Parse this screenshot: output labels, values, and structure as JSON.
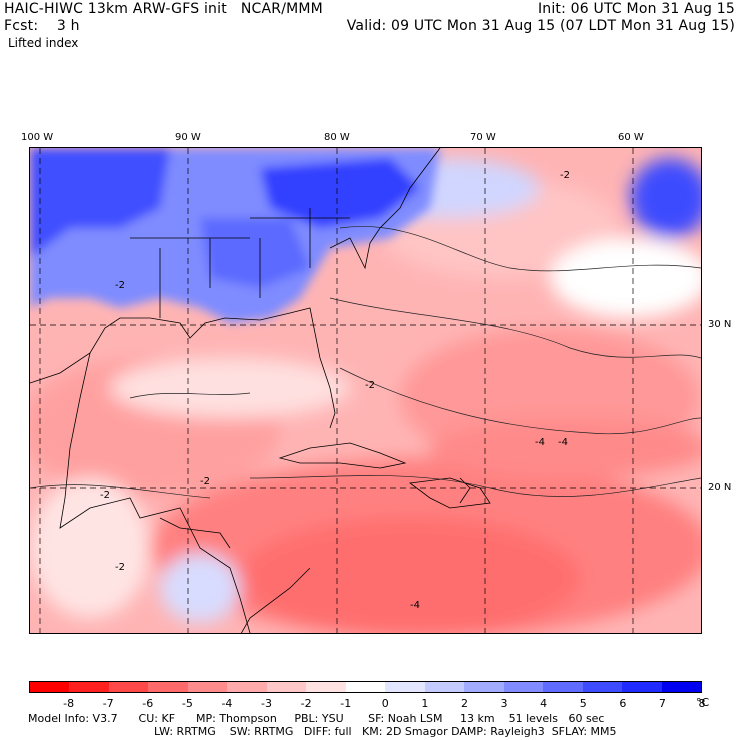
{
  "header": {
    "line1_left": "HAIC-HIWC 13km ARW-GFS init   NCAR/MMM",
    "line1_right": "Init: 06 UTC Mon 31 Aug 15",
    "line2_left": "Fcst:    3 h",
    "line2_right": "Valid: 09 UTC Mon 31 Aug 15 (07 LDT Mon 31 Aug 15)",
    "field": "Lifted index"
  },
  "map": {
    "lon_labels": [
      "100 W",
      "90 W",
      "80 W",
      "70 W",
      "60 W"
    ],
    "lat_labels": [
      "30 N",
      "20 N"
    ],
    "contour_labels": [
      "-2",
      "-2",
      "-2",
      "-2",
      "-4",
      "-4",
      "-2",
      "-2",
      "-4"
    ]
  },
  "colorbar": {
    "colors": [
      "#ff0000",
      "#ff2020",
      "#ff4848",
      "#ff6a6a",
      "#ff8c8c",
      "#ffabab",
      "#ffc8c8",
      "#ffe2e2",
      "#ffffff",
      "#e2e6ff",
      "#c4ccff",
      "#a2acff",
      "#808cff",
      "#5f6cff",
      "#3e4cff",
      "#1f2bff",
      "#0000f0"
    ],
    "ticks": [
      "-8",
      "-7",
      "-6",
      "-5",
      "-4",
      "-3",
      "-2",
      "-1",
      "0",
      "1",
      "2",
      "3",
      "4",
      "5",
      "6",
      "7",
      "8"
    ],
    "unit": "°C"
  },
  "footer": {
    "line1": "Model Info: V3.7      CU: KF      MP: Thompson     PBL: YSU       SF: Noah LSM     13 km    51 levels   60 sec",
    "line2": "LW: RRTMG    SW: RRTMG   DIFF: full   KM: 2D Smagor DAMP: Rayleigh3  SFLAY: MM5"
  }
}
